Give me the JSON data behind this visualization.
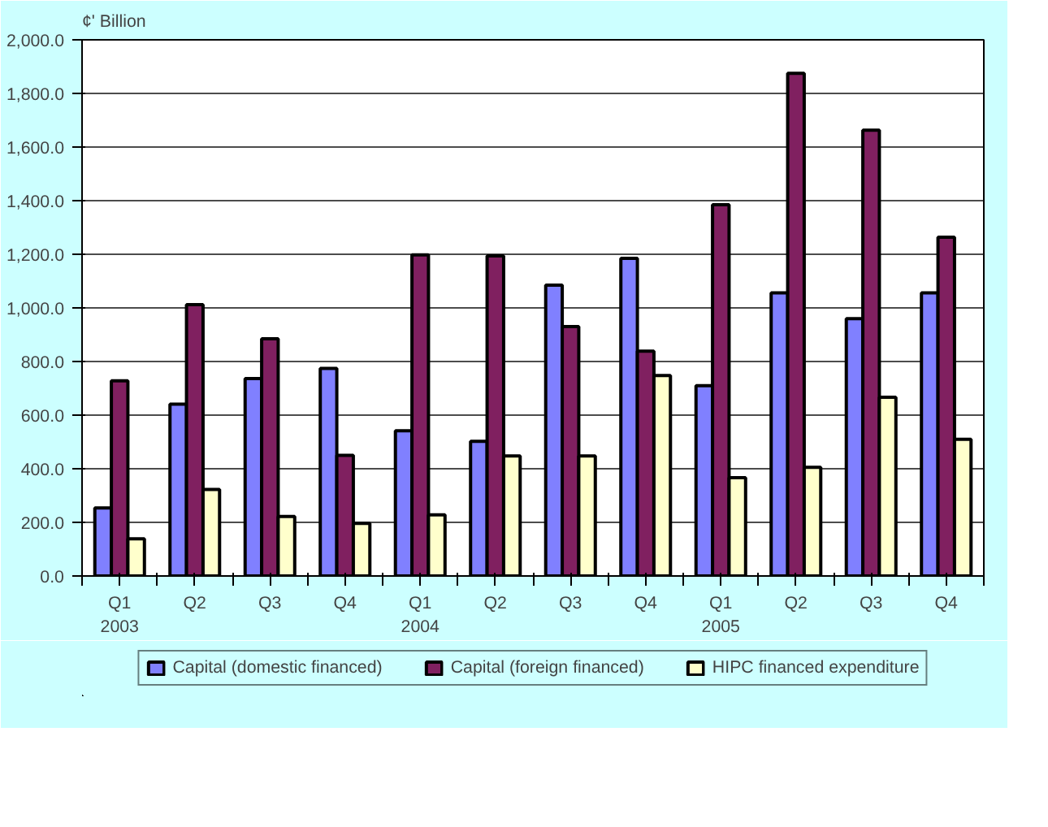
{
  "chart_data": {
    "type": "bar",
    "ylabel": "¢' Billion",
    "categories": [
      "Q1\n2003",
      "Q2",
      "Q3",
      "Q4",
      "Q1\n2004",
      "Q2",
      "Q3",
      "Q4",
      "Q1\n2005",
      "Q2",
      "Q3",
      "Q4"
    ],
    "series": [
      {
        "name": "Capital (domestic financed)",
        "color": "#8080ff",
        "values": [
          254,
          641,
          736,
          774,
          542,
          502,
          1085,
          1185,
          710,
          1056,
          960,
          1056
        ]
      },
      {
        "name": "Capital (foreign financed)",
        "color": "#802060",
        "values": [
          728,
          1012,
          885,
          450,
          1198,
          1194,
          930,
          839,
          1385,
          1875,
          1663,
          1264
        ]
      },
      {
        "name": "HIPC financed expenditure",
        "color": "#ffffcc",
        "values": [
          139,
          323,
          222,
          196,
          228,
          448,
          448,
          748,
          367,
          405,
          667,
          510
        ]
      }
    ],
    "ylim": [
      0,
      2000
    ],
    "yticks": [
      {
        "value": 0,
        "label": "0.0"
      },
      {
        "value": 200,
        "label": "200.0"
      },
      {
        "value": 400,
        "label": "400.0"
      },
      {
        "value": 600,
        "label": "600.0"
      },
      {
        "value": 800,
        "label": "800.0"
      },
      {
        "value": 1000,
        "label": "1,000.0"
      },
      {
        "value": 1200,
        "label": "1,200.0"
      },
      {
        "value": 1400,
        "label": "1,400.0"
      },
      {
        "value": 1600,
        "label": "1,600.0"
      },
      {
        "value": 1800,
        "label": "1,800.0"
      },
      {
        "value": 2000,
        "label": "2,000.0"
      }
    ],
    "grid": "y",
    "legend": "bottom"
  }
}
